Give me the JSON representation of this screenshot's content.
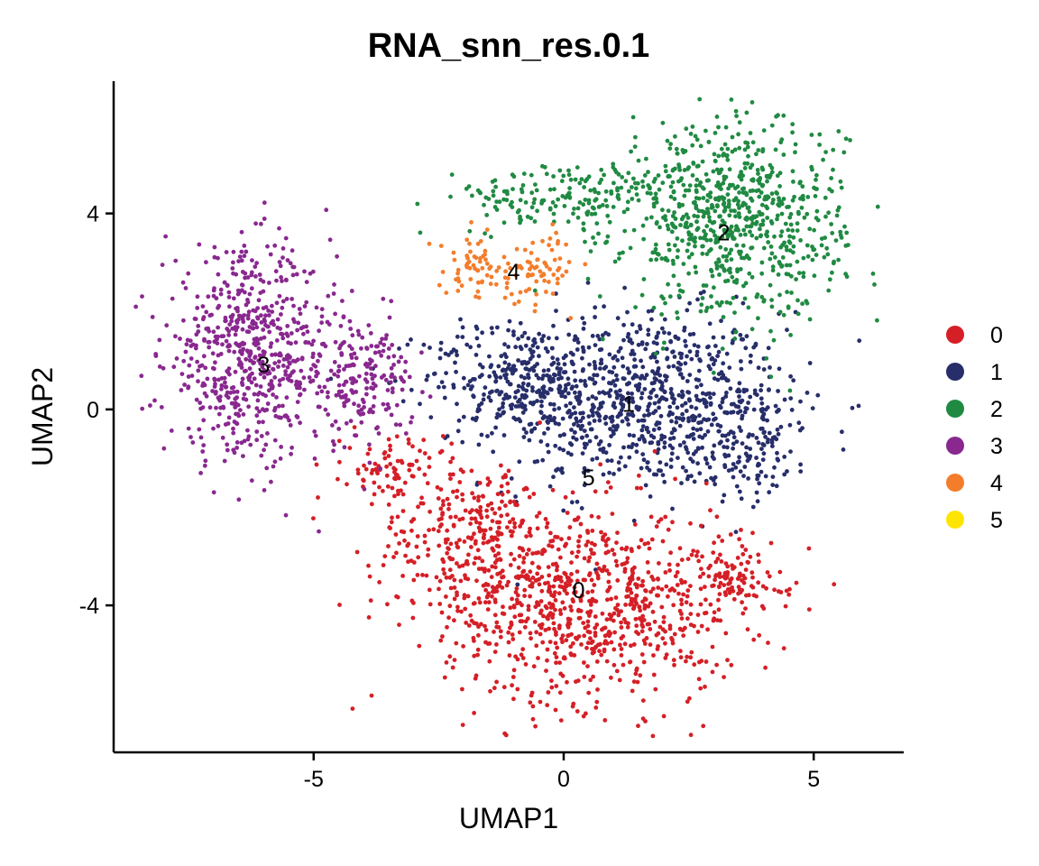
{
  "chart_data": {
    "type": "scatter",
    "title": "RNA_snn_res.0.1",
    "xlabel": "UMAP1",
    "ylabel": "UMAP2",
    "xlim": [
      -9.0,
      6.8
    ],
    "ylim": [
      -7.0,
      6.7
    ],
    "xticks": [
      -5,
      0,
      5
    ],
    "xtick_labels": [
      "-5",
      "0",
      "5"
    ],
    "yticks": [
      -4,
      0,
      4
    ],
    "ytick_labels": [
      "-4",
      "0",
      "4"
    ],
    "grid": false,
    "legend_position": "right",
    "series": [
      {
        "name": "0",
        "color": "#D51F26",
        "center": [
          0.3,
          -3.7
        ]
      },
      {
        "name": "1",
        "color": "#272E6A",
        "center": [
          1.3,
          0.1
        ]
      },
      {
        "name": "2",
        "color": "#208A42",
        "center": [
          3.2,
          3.6
        ]
      },
      {
        "name": "3",
        "color": "#89288F",
        "center": [
          -6.0,
          0.9
        ]
      },
      {
        "name": "4",
        "color": "#F47D2B",
        "center": [
          -1.0,
          2.8
        ]
      },
      {
        "name": "5",
        "color": "#FEE500",
        "center": [
          0.5,
          -1.4
        ]
      }
    ],
    "cluster_labels": [
      {
        "text": "0",
        "x": 0.3,
        "y": -3.7
      },
      {
        "text": "1",
        "x": 1.3,
        "y": 0.1
      },
      {
        "text": "2",
        "x": 3.2,
        "y": 3.6
      },
      {
        "text": "3",
        "x": -6.0,
        "y": 0.9
      },
      {
        "text": "4",
        "x": -1.0,
        "y": 2.8
      },
      {
        "text": "5",
        "x": 0.5,
        "y": -1.4
      }
    ]
  }
}
